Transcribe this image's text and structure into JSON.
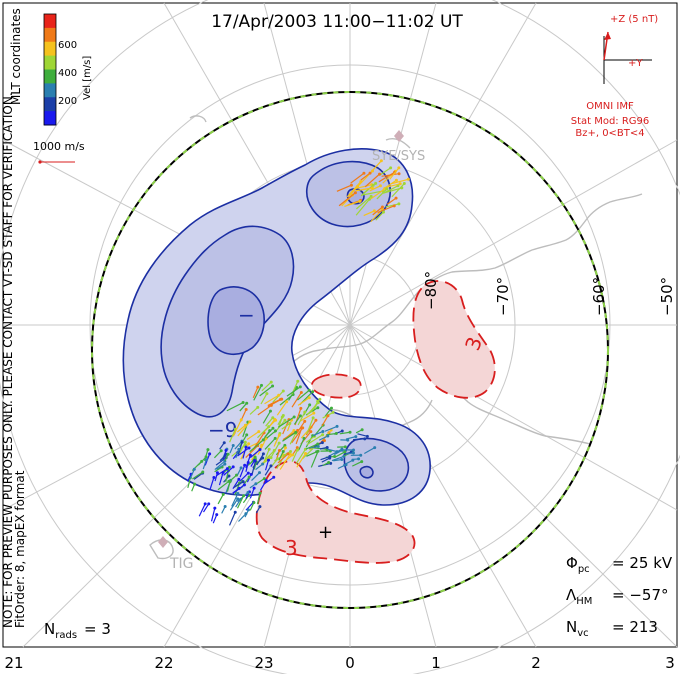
{
  "title": "17/Apr/2003 11:00−11:02 UT",
  "colorbar": {
    "label": "Vel [m/s]",
    "ticks": [
      "600",
      "400",
      "200"
    ],
    "colors": [
      "#e8241a",
      "#f07a18",
      "#f5c21e",
      "#9fd636",
      "#3fae3d",
      "#2a7fb0",
      "#1b3fa8",
      "#1a1aee"
    ]
  },
  "coord_label": "MLT coordinates",
  "scale_label": "1000 m/s",
  "side_note": "NOTE: FOR PREVIEW PURPOSES ONLY. PLEASE CONTACT VT-SD STAFF FOR VERIFICATION.",
  "fit_note": "FitOrder: 8, mapEX format",
  "imf": {
    "z_label": "+Z (5 nT)",
    "y_label": "+Y",
    "source": "OMNI IMF",
    "model": "Stat Mod: RG96",
    "condition": "Bz+, 0<BT<4"
  },
  "lat_labels": [
    "−80°",
    "−70°",
    "−60°",
    "−50°"
  ],
  "mlt_labels": [
    "21",
    "22",
    "23",
    "0",
    "1",
    "2",
    "3"
  ],
  "station_labels": [
    "SYE/SYS",
    "TIG"
  ],
  "contours": {
    "neg_label": "−9",
    "pos_label": "3",
    "min_mark": "−",
    "max_mark": "+"
  },
  "stats": {
    "phi_pc": "= 25 kV",
    "lambda_hm": "= −57°",
    "n_vc": "= 213",
    "n_rads": "= 3"
  },
  "colors": {
    "neg_fill": "#cfd3ee",
    "neg_line": "#1c2fa3",
    "pos_fill": "#f4d6d6",
    "pos_line": "#d81e1e",
    "grid": "#c9c9c9",
    "coast": "#bdbdbd",
    "hm_boundary": "#000000",
    "hm_dash": "#8ed34a"
  }
}
